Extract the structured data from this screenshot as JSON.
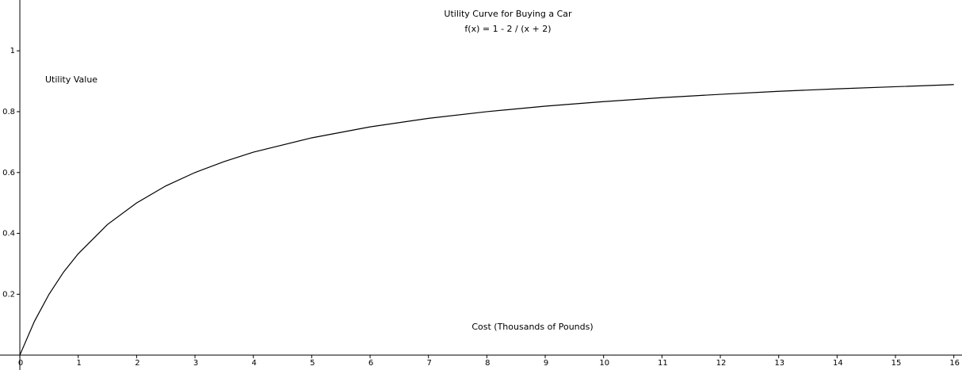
{
  "chart_data": {
    "type": "line",
    "title": "Utility Curve for Buying a Car",
    "subtitle": "f(x) = 1 - 2 / (x + 2)",
    "y_label": "Utility Value",
    "x_label": "Cost (Thousands of Pounds)",
    "x": [
      0,
      0.25,
      0.5,
      0.75,
      1,
      1.5,
      2,
      2.5,
      3,
      3.5,
      4,
      5,
      6,
      7,
      8,
      9,
      10,
      11,
      12,
      13,
      14,
      15,
      16
    ],
    "series": [
      {
        "color": "#000000",
        "values": [
          0,
          0.111,
          0.2,
          0.273,
          0.333,
          0.429,
          0.5,
          0.556,
          0.6,
          0.636,
          0.667,
          0.714,
          0.75,
          0.778,
          0.8,
          0.818,
          0.833,
          0.846,
          0.857,
          0.867,
          0.875,
          0.882,
          0.889
        ]
      }
    ],
    "xlim": [
      -0.34,
      16.14
    ],
    "ylim": [
      -0.049,
      1.167
    ],
    "xticks": [
      0,
      1,
      2,
      3,
      4,
      5,
      6,
      7,
      8,
      9,
      10,
      11,
      12,
      13,
      14,
      15,
      16
    ],
    "yticks": [
      0.2,
      0.4,
      0.6,
      0.8,
      1
    ]
  }
}
